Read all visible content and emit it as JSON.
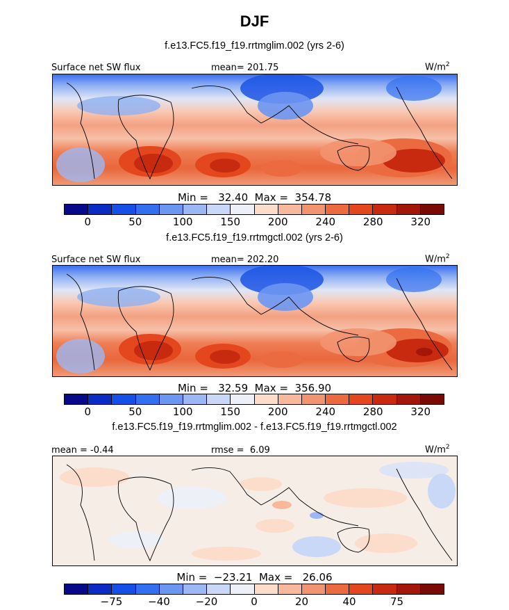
{
  "title": "DJF",
  "colors": [
    "#08088a",
    "#0a2bc4",
    "#1550e6",
    "#3370f0",
    "#6b96f2",
    "#9cb8f4",
    "#c9d8f6",
    "#eef0f8",
    "#fcdccb",
    "#f8b89c",
    "#f39470",
    "#ec6a40",
    "#e4461e",
    "#c82a10",
    "#a41608",
    "#7a0a04"
  ],
  "panels": [
    {
      "title": "f.e13.FC5.f19_f19.rrtmglim.002 (yrs 2-6)",
      "left_label": "Surface net SW flux",
      "center_label": "mean= 201.75",
      "units": "W/m",
      "units_sup": "2",
      "stats": "Min =   32.40  Max =  354.78",
      "colorbar_ticks": [
        "0",
        "50",
        "100",
        "150",
        "200",
        "240",
        "280",
        "320"
      ]
    },
    {
      "title": "f.e13.FC5.f19_f19.rrtmgctl.002 (yrs 2-6)",
      "left_label": "Surface net SW flux",
      "center_label": "mean= 202.20",
      "units": "W/m",
      "units_sup": "2",
      "stats": "Min =   32.59  Max =  356.90",
      "colorbar_ticks": [
        "0",
        "50",
        "100",
        "150",
        "200",
        "240",
        "280",
        "320"
      ]
    },
    {
      "title": "f.e13.FC5.f19_f19.rrtmglim.002 - f.e13.FC5.f19_f19.rrtmgctl.002",
      "left_label": "mean = -0.44",
      "center_label": "rmse =  6.09",
      "units": "W/m",
      "units_sup": "2",
      "stats": "Min =  −23.21  Max =   26.06",
      "colorbar_ticks": [
        "−75",
        "−40",
        "−20",
        "0",
        "20",
        "40",
        "75"
      ]
    }
  ]
}
